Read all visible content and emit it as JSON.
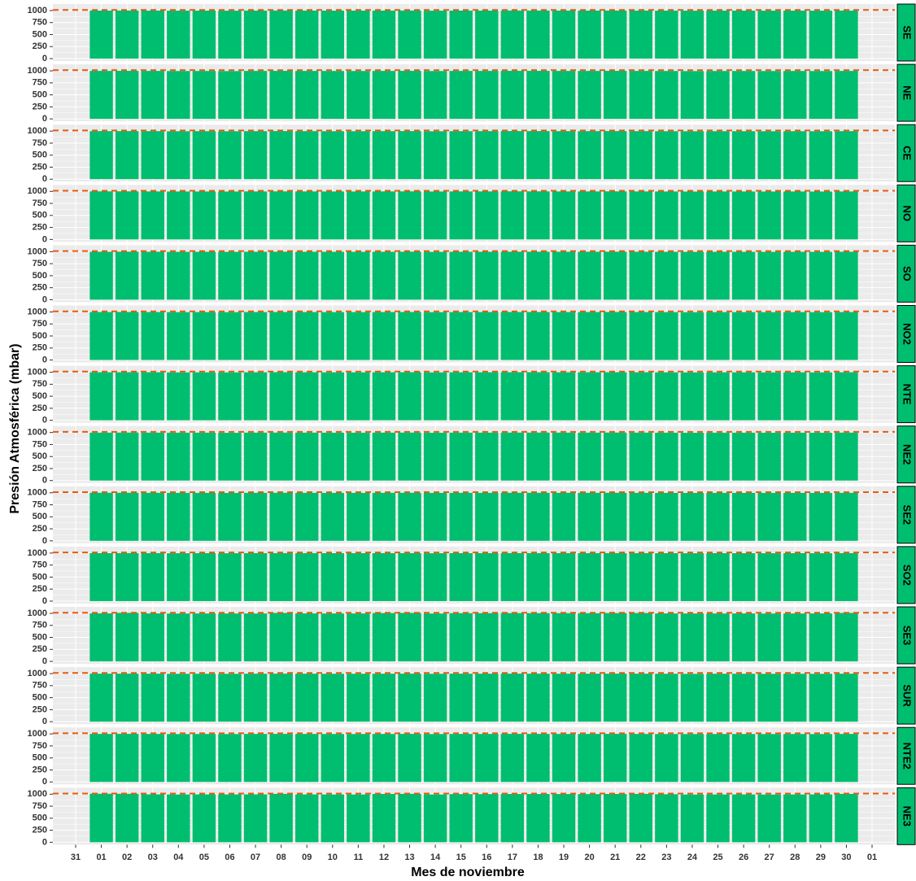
{
  "chart_data": {
    "type": "bar",
    "y_label": "Presión Atmosférica (mbar)",
    "x_label": "Mes de noviembre",
    "categories": [
      "31",
      "01",
      "02",
      "03",
      "04",
      "05",
      "06",
      "07",
      "08",
      "09",
      "10",
      "11",
      "12",
      "13",
      "14",
      "15",
      "16",
      "17",
      "18",
      "19",
      "20",
      "21",
      "22",
      "23",
      "24",
      "25",
      "26",
      "27",
      "28",
      "29",
      "30",
      "01"
    ],
    "ylim": [
      -50,
      1135
    ],
    "yticks": [
      0,
      250,
      500,
      750,
      1000
    ],
    "color": "#00be6f",
    "reference_line": 1013,
    "reference_color": "#e8590c",
    "grid": true,
    "panels": [
      {
        "name": "SE",
        "values": [
          null,
          1000,
          1001,
          1000,
          998,
          999,
          998,
          1000,
          1001,
          1000,
          999,
          999,
          1000,
          1001,
          998,
          1000,
          1000,
          1001,
          1001,
          1000,
          1000,
          1001,
          1000,
          999,
          998,
          999,
          999,
          998,
          999,
          998,
          1000,
          null
        ]
      },
      {
        "name": "NE",
        "values": [
          null,
          999,
          1000,
          999,
          997,
          998,
          996,
          999,
          1000,
          999,
          998,
          998,
          999,
          1000,
          997,
          999,
          999,
          1000,
          1000,
          999,
          999,
          1000,
          999,
          998,
          996,
          998,
          998,
          997,
          998,
          997,
          999,
          null
        ]
      },
      {
        "name": "CE",
        "values": [
          null,
          1000,
          1001,
          1000,
          998,
          999,
          998,
          1000,
          1001,
          1000,
          999,
          999,
          1000,
          1001,
          998,
          1000,
          1000,
          1001,
          1001,
          1000,
          1000,
          1001,
          1000,
          999,
          998,
          999,
          999,
          998,
          999,
          998,
          1000,
          null
        ]
      },
      {
        "name": "NO",
        "values": [
          null,
          1001,
          1001,
          1000,
          999,
          999,
          998,
          1000,
          1001,
          1000,
          999,
          999,
          1000,
          1001,
          999,
          1000,
          1000,
          1002,
          1001,
          1000,
          1000,
          1001,
          1000,
          999,
          998,
          999,
          999,
          998,
          999,
          998,
          1000,
          null
        ]
      },
      {
        "name": "SO",
        "values": [
          null,
          998,
          1000,
          999,
          997,
          998,
          997,
          999,
          1000,
          999,
          998,
          998,
          999,
          1000,
          997,
          999,
          999,
          1000,
          1000,
          999,
          999,
          1000,
          999,
          998,
          997,
          998,
          998,
          997,
          998,
          997,
          999,
          null
        ]
      },
      {
        "name": "NO2",
        "values": [
          null,
          999,
          1000,
          999,
          997,
          998,
          997,
          999,
          1000,
          999,
          998,
          998,
          999,
          1000,
          997,
          999,
          999,
          1000,
          1000,
          999,
          999,
          1000,
          999,
          998,
          996,
          998,
          998,
          997,
          998,
          997,
          999,
          null
        ]
      },
      {
        "name": "NTE",
        "values": [
          null,
          1000,
          1001,
          1000,
          998,
          999,
          998,
          1000,
          1001,
          1000,
          999,
          999,
          1000,
          1001,
          998,
          1000,
          1000,
          1001,
          1001,
          1000,
          1000,
          1001,
          1000,
          999,
          998,
          999,
          999,
          998,
          999,
          998,
          1000,
          null
        ]
      },
      {
        "name": "NE2",
        "values": [
          null,
          999,
          1000,
          999,
          998,
          998,
          996,
          999,
          1000,
          999,
          998,
          998,
          999,
          1000,
          997,
          999,
          999,
          1000,
          1000,
          999,
          999,
          1000,
          999,
          998,
          996,
          998,
          998,
          997,
          998,
          997,
          999,
          null
        ]
      },
      {
        "name": "SE2",
        "values": [
          null,
          1001,
          1001,
          1000,
          999,
          999,
          998,
          1000,
          1001,
          1000,
          999,
          999,
          1000,
          1001,
          999,
          1000,
          1000,
          1001,
          1001,
          1000,
          1000,
          1001,
          1000,
          999,
          998,
          999,
          999,
          998,
          999,
          998,
          1000,
          null
        ]
      },
      {
        "name": "SO2",
        "values": [
          null,
          998,
          1000,
          999,
          997,
          998,
          997,
          999,
          1000,
          999,
          998,
          998,
          999,
          1000,
          997,
          999,
          999,
          1000,
          1000,
          999,
          999,
          1000,
          999,
          998,
          997,
          998,
          998,
          997,
          998,
          997,
          999,
          null
        ]
      },
      {
        "name": "SE3",
        "values": [
          null,
          1000,
          1010,
          999,
          997,
          998,
          998,
          998,
          1008,
          999,
          998,
          998,
          1006,
          1008,
          997,
          1004,
          1004,
          1005,
          1005,
          1004,
          1003,
          1006,
          1007,
          999,
          998,
          998,
          999,
          997,
          998,
          999,
          1008,
          null
        ]
      },
      {
        "name": "SUR",
        "values": [
          null,
          999,
          1000,
          999,
          997,
          998,
          997,
          999,
          1000,
          999,
          998,
          998,
          999,
          1000,
          997,
          999,
          999,
          1000,
          1000,
          999,
          999,
          1000,
          999,
          998,
          996,
          998,
          998,
          997,
          998,
          997,
          999,
          null
        ]
      },
      {
        "name": "NTE2",
        "values": [
          null,
          1000,
          1001,
          1000,
          998,
          999,
          998,
          1000,
          1001,
          1000,
          999,
          999,
          1000,
          1001,
          998,
          1000,
          1000,
          1001,
          1001,
          1000,
          1000,
          1001,
          1000,
          999,
          998,
          999,
          999,
          998,
          999,
          998,
          1000,
          null
        ]
      },
      {
        "name": "NE3",
        "values": [
          null,
          1009,
          1008,
          997,
          995,
          996,
          996,
          997,
          1007,
          996,
          995,
          995,
          1005,
          1007,
          994,
          1002,
          1002,
          1004,
          1004,
          1003,
          1002,
          1005,
          1006,
          1000,
          994,
          995,
          996,
          994,
          995,
          996,
          1006,
          null
        ]
      }
    ]
  }
}
